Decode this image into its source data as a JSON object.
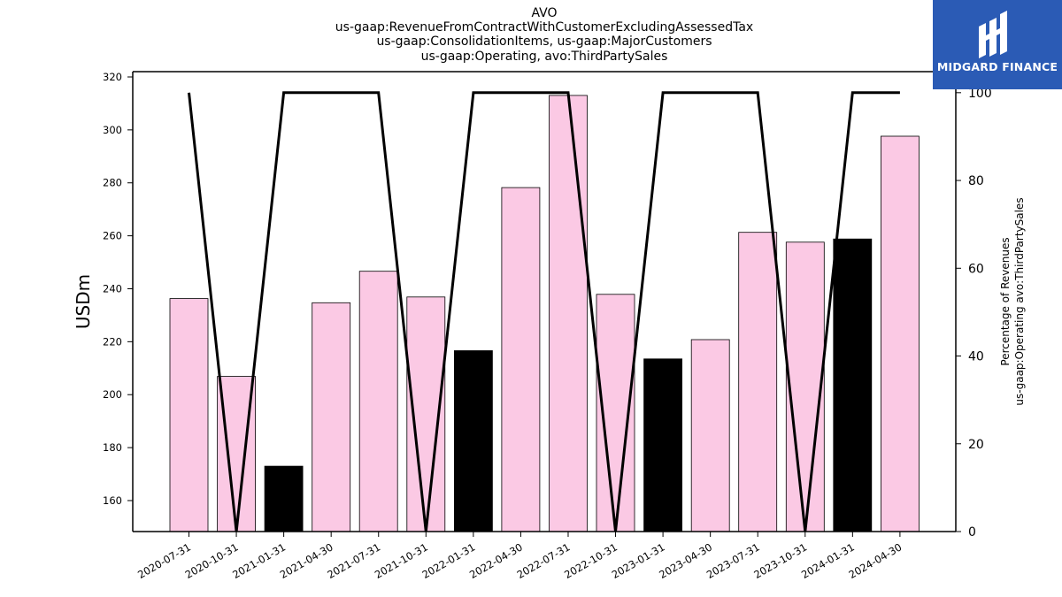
{
  "brand": {
    "name": "MIDGARD FINANCE",
    "color": "#2b5bb5"
  },
  "chart_data": {
    "type": "bar",
    "title_lines": [
      "AVO",
      "us-gaap:RevenueFromContractWithCustomerExcludingAssessedTax",
      "us-gaap:ConsolidationItems, us-gaap:MajorCustomers",
      "us-gaap:Operating, avo:ThirdPartySales"
    ],
    "ylabel": "USDm",
    "y2label_lines": [
      "Percentage of Revenues",
      "us-gaap:Operating avo:ThirdPartySales"
    ],
    "categories": [
      "2020-07-31",
      "2020-10-31",
      "2021-01-31",
      "2021-04-30",
      "2021-07-31",
      "2021-10-31",
      "2022-01-31",
      "2022-04-30",
      "2022-07-31",
      "2022-10-31",
      "2023-01-31",
      "2023-04-30",
      "2023-07-31",
      "2023-10-31",
      "2024-01-31",
      "2024-04-30"
    ],
    "series": [
      {
        "values": [
          236.3,
          206.9,
          173.0,
          234.7,
          246.6,
          236.9,
          216.6,
          278.2,
          313.0,
          237.9,
          213.5,
          220.8,
          261.3,
          257.6,
          258.8,
          297.6
        ],
        "colors": [
          "#fbc9e4",
          "#fbc9e4",
          "#000000",
          "#fbc9e4",
          "#fbc9e4",
          "#fbc9e4",
          "#000000",
          "#fbc9e4",
          "#fbc9e4",
          "#fbc9e4",
          "#000000",
          "#fbc9e4",
          "#fbc9e4",
          "#fbc9e4",
          "#000000",
          "#fbc9e4"
        ],
        "axis": "left"
      },
      {
        "type": "line",
        "values": [
          100,
          0,
          100,
          100,
          100,
          0,
          100,
          100,
          100,
          0,
          100,
          100,
          100,
          0,
          100,
          100
        ],
        "color": "#000000",
        "axis": "right"
      }
    ],
    "ylim": [
      148.3,
      322
    ],
    "y2lim": [
      0,
      104.8
    ],
    "yticks": [
      160,
      180,
      200,
      220,
      240,
      260,
      280,
      300,
      320
    ],
    "y2ticks": [
      0,
      20,
      40,
      60,
      80,
      100
    ],
    "grid": false,
    "legend": "none"
  }
}
